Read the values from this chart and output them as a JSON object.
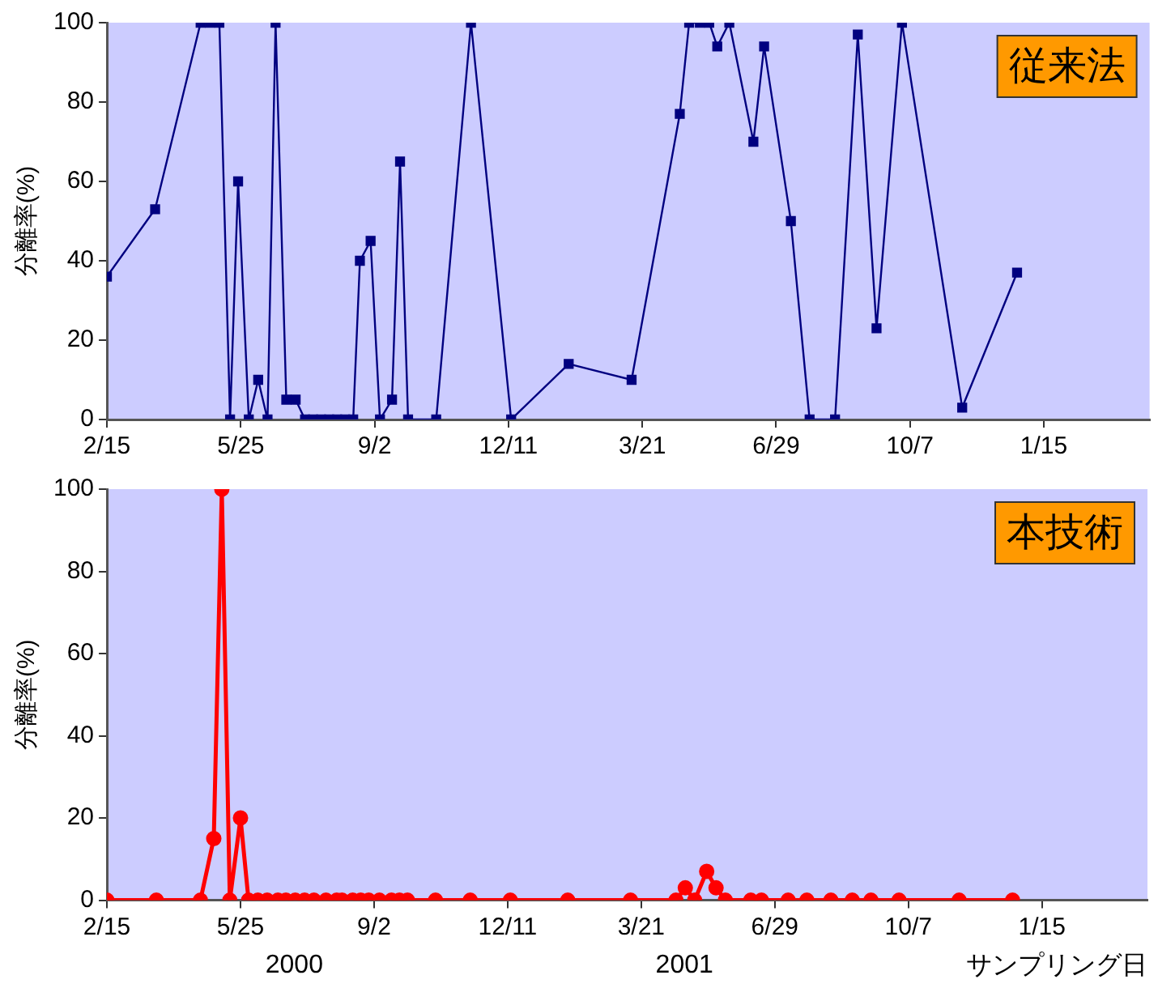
{
  "chart_data": [
    {
      "type": "line",
      "ylabel": "分離率(%)",
      "annotations": [
        "従来法"
      ],
      "grid": false,
      "legend": false,
      "marker": "square",
      "line_style": "solid",
      "xlim": [
        "2000-02-15",
        "2002-04-04"
      ],
      "ylim": [
        0,
        100
      ],
      "yticks": [
        0,
        20,
        40,
        60,
        80,
        100
      ],
      "xticks": [
        {
          "value": "2000-02-15",
          "label": "2/15"
        },
        {
          "value": "2000-05-25",
          "label": "5/25"
        },
        {
          "value": "2000-09-02",
          "label": "9/2"
        },
        {
          "value": "2000-12-11",
          "label": "12/11"
        },
        {
          "value": "2001-03-21",
          "label": "3/21"
        },
        {
          "value": "2001-06-29",
          "label": "6/29"
        },
        {
          "value": "2001-10-07",
          "label": "10/7"
        },
        {
          "value": "2002-01-15",
          "label": "1/15"
        }
      ],
      "series": [
        {
          "color": "#000080",
          "x": [
            "2000-02-15",
            "2000-03-22",
            "2000-04-25",
            "2000-05-02",
            "2000-05-09",
            "2000-05-17",
            "2000-05-23",
            "2000-05-31",
            "2000-06-07",
            "2000-06-14",
            "2000-06-20",
            "2000-06-28",
            "2000-07-05",
            "2000-07-12",
            "2000-07-18",
            "2000-07-24",
            "2000-07-30",
            "2000-08-05",
            "2000-08-11",
            "2000-08-17",
            "2000-08-22",
            "2000-08-30",
            "2000-09-06",
            "2000-09-15",
            "2000-09-21",
            "2000-09-27",
            "2000-10-18",
            "2000-11-13",
            "2000-12-13",
            "2001-01-25",
            "2001-03-13",
            "2001-04-18",
            "2001-04-25",
            "2001-05-03",
            "2001-05-10",
            "2001-05-16",
            "2001-05-25",
            "2001-06-12",
            "2001-06-20",
            "2001-07-10",
            "2001-07-24",
            "2001-08-12",
            "2001-08-29",
            "2001-09-12",
            "2001-10-01",
            "2001-11-15",
            "2001-12-26"
          ],
          "values": [
            36,
            53,
            100,
            100,
            100,
            0,
            60,
            0,
            10,
            0,
            100,
            5,
            5,
            0,
            0,
            0,
            0,
            0,
            0,
            0,
            40,
            45,
            0,
            5,
            65,
            0,
            0,
            100,
            0,
            14,
            10,
            77,
            100,
            100,
            100,
            94,
            100,
            70,
            94,
            50,
            0,
            0,
            97,
            23,
            100,
            3,
            37
          ]
        }
      ]
    },
    {
      "type": "line",
      "ylabel": "分離率(%)",
      "xlabel": "サンプリング日",
      "annotations": [
        "本技術",
        "2000",
        "2001"
      ],
      "grid": false,
      "legend": false,
      "marker": "circle",
      "line_style": "solid",
      "xlim": [
        "2000-02-15",
        "2002-04-04"
      ],
      "ylim": [
        0,
        100
      ],
      "yticks": [
        0,
        20,
        40,
        60,
        80,
        100
      ],
      "xticks": [
        {
          "value": "2000-02-15",
          "label": "2/15"
        },
        {
          "value": "2000-05-25",
          "label": "5/25"
        },
        {
          "value": "2000-09-02",
          "label": "9/2"
        },
        {
          "value": "2000-12-11",
          "label": "12/11"
        },
        {
          "value": "2001-03-21",
          "label": "3/21"
        },
        {
          "value": "2001-06-29",
          "label": "6/29"
        },
        {
          "value": "2001-10-07",
          "label": "10/7"
        },
        {
          "value": "2002-01-15",
          "label": "1/15"
        }
      ],
      "series": [
        {
          "color": "#ff0000",
          "x": [
            "2000-02-15",
            "2000-03-23",
            "2000-04-25",
            "2000-05-05",
            "2000-05-11",
            "2000-05-17",
            "2000-05-25",
            "2000-05-31",
            "2000-06-07",
            "2000-06-14",
            "2000-06-22",
            "2000-06-28",
            "2000-07-05",
            "2000-07-12",
            "2000-07-19",
            "2000-07-28",
            "2000-08-05",
            "2000-08-09",
            "2000-08-17",
            "2000-08-23",
            "2000-08-29",
            "2000-09-06",
            "2000-09-15",
            "2000-09-21",
            "2000-09-27",
            "2000-10-18",
            "2000-11-13",
            "2000-12-13",
            "2001-01-25",
            "2001-03-13",
            "2001-04-16",
            "2001-04-23",
            "2001-04-30",
            "2001-05-09",
            "2001-05-16",
            "2001-05-23",
            "2001-06-11",
            "2001-06-19",
            "2001-07-09",
            "2001-07-23",
            "2001-08-10",
            "2001-08-26",
            "2001-09-09",
            "2001-09-30",
            "2001-11-14",
            "2001-12-24"
          ],
          "values": [
            0,
            0,
            0,
            15,
            100,
            0,
            20,
            0,
            0,
            0,
            0,
            0,
            0,
            0,
            0,
            0,
            0,
            0,
            0,
            0,
            0,
            0,
            0,
            0,
            0,
            0,
            0,
            0,
            0,
            0,
            0,
            3,
            0,
            7,
            3,
            0,
            0,
            0,
            0,
            0,
            0,
            0,
            0,
            0,
            0,
            0
          ]
        }
      ]
    }
  ]
}
